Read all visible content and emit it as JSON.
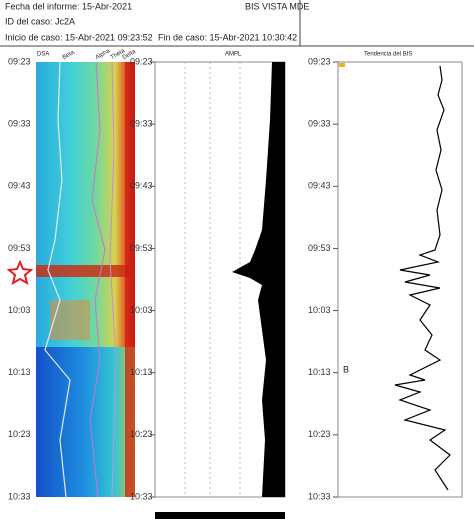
{
  "header": {
    "report_date": "Fecha del informe: 15-Abr-2021",
    "device": "BIS VISTA MDE",
    "case_id": "ID del caso: Jc2A",
    "case_start": "Inicio de caso: 15-Abr-2021 09:23:52",
    "case_end": "Fin de caso: 15-Abr-2021 10:30:42"
  },
  "panels": {
    "dsa": {
      "title": "DSA",
      "bands": [
        "Beta",
        "Alpha",
        "Theta",
        "Delta"
      ]
    },
    "ampl": {
      "title": "AMPL"
    },
    "bis": {
      "title": "Tendencia del BIS",
      "marker": "B"
    }
  },
  "time_ticks": [
    "09:23",
    "09:33",
    "09:43",
    "09:53",
    "10:03",
    "10:13",
    "10:23",
    "10:33"
  ]
}
